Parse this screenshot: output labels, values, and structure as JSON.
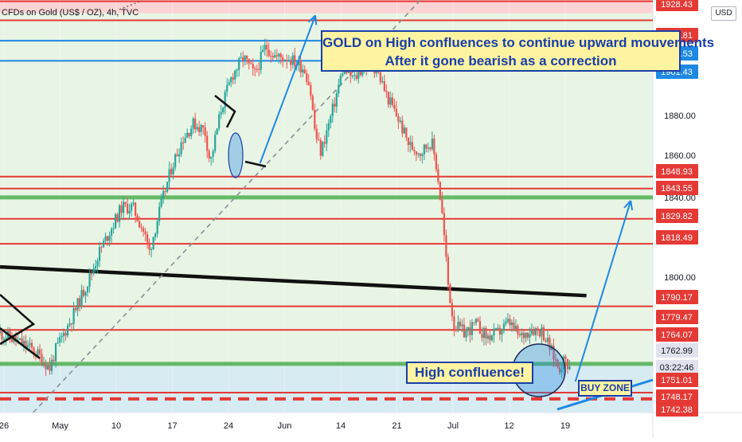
{
  "header": {
    "symbol": "CFDs on Gold (US$ / OZ), 4h, TVC",
    "currency_badge": "USD"
  },
  "annotations": {
    "callout_line1": "GOLD on High confluences to continue upward mouvements",
    "callout_line2": "After it gone bearish as a correction",
    "high_confluence": "High confluence!",
    "buy_zone": "BUY ZONE"
  },
  "colors": {
    "accent_blue": "#1a3fa8",
    "level_red": "#e53935",
    "level_green": "#4caf50",
    "line_blue": "#1e88e5",
    "candle_up": "#26a69a",
    "candle_down": "#ef5350",
    "note_yellow": "#fdf3a1",
    "zone_green": "#e8f4e4",
    "zone_blue": "#d7ebf2",
    "zone_pink": "#fbd3d3"
  },
  "chart_data": {
    "type": "candlestick",
    "title": "CFDs on Gold (US$ / OZ), 4h, TVC",
    "x_axis": {
      "tick_labels": [
        "26",
        "May",
        "10",
        "17",
        "24",
        "Jun",
        "14",
        "21",
        "Jul",
        "12",
        "19"
      ]
    },
    "y_axis": {
      "tick_labels": [
        "1800.00",
        "1840.00",
        "1860.00",
        "1880.00"
      ],
      "ylim": [
        1742,
        1929
      ],
      "unit": "USD"
    },
    "price_labels": [
      {
        "text": "1928.43",
        "style": "red"
      },
      {
        "text": "1919.81",
        "style": "red"
      },
      {
        "text": "1910.53",
        "style": "blue"
      },
      {
        "text": "1901.43",
        "style": "blue"
      },
      {
        "text": "1848.93",
        "style": "red"
      },
      {
        "text": "1843.55",
        "style": "red"
      },
      {
        "text": "1829.82",
        "style": "red"
      },
      {
        "text": "1818.49",
        "style": "red"
      },
      {
        "text": "1790.17",
        "style": "red"
      },
      {
        "text": "1779.47",
        "style": "red"
      },
      {
        "text": "1764.07",
        "style": "red"
      },
      {
        "text": "1762.99",
        "style": "current"
      },
      {
        "text": "03:22:46",
        "style": "current"
      },
      {
        "text": "1751.01",
        "style": "red"
      },
      {
        "text": "1748.17",
        "style": "red"
      },
      {
        "text": "1742.38",
        "style": "red"
      }
    ],
    "horizontal_levels": [
      {
        "price": 1928.43,
        "color": "red",
        "style": "solid"
      },
      {
        "price": 1919.81,
        "color": "red",
        "style": "solid"
      },
      {
        "price": 1910.53,
        "color": "blue",
        "style": "solid"
      },
      {
        "price": 1901.43,
        "color": "blue",
        "style": "solid"
      },
      {
        "price": 1848.93,
        "color": "red",
        "style": "solid"
      },
      {
        "price": 1843.55,
        "color": "red",
        "style": "solid"
      },
      {
        "price": 1839.5,
        "color": "green",
        "style": "thick"
      },
      {
        "price": 1829.82,
        "color": "red",
        "style": "solid"
      },
      {
        "price": 1818.49,
        "color": "red",
        "style": "solid"
      },
      {
        "price": 1790.17,
        "color": "red",
        "style": "solid"
      },
      {
        "price": 1779.47,
        "color": "red",
        "style": "solid"
      },
      {
        "price": 1764.07,
        "color": "green",
        "style": "thick"
      },
      {
        "price": 1751.01,
        "color": "red",
        "style": "solid"
      },
      {
        "price": 1748.17,
        "color": "red",
        "style": "dashed"
      }
    ],
    "zones": [
      {
        "from": 1764,
        "to": 1929,
        "color": "green"
      },
      {
        "from": 1742,
        "to": 1764,
        "color": "blue"
      },
      {
        "from": 1923,
        "to": 1929,
        "color": "pink"
      }
    ],
    "price_path": [
      [
        0,
        1778
      ],
      [
        5,
        1772
      ],
      [
        7,
        1768
      ],
      [
        9,
        1762
      ],
      [
        10,
        1770
      ],
      [
        13,
        1785
      ],
      [
        16,
        1802
      ],
      [
        18,
        1815
      ],
      [
        20,
        1825
      ],
      [
        22,
        1835
      ],
      [
        24,
        1835
      ],
      [
        26,
        1824
      ],
      [
        27,
        1815
      ],
      [
        29,
        1835
      ],
      [
        31,
        1853
      ],
      [
        33,
        1866
      ],
      [
        35,
        1873
      ],
      [
        37,
        1870
      ],
      [
        38,
        1855
      ],
      [
        40,
        1880
      ],
      [
        42,
        1895
      ],
      [
        44,
        1903
      ],
      [
        46,
        1895
      ],
      [
        48,
        1908
      ],
      [
        50,
        1903
      ],
      [
        52,
        1903
      ],
      [
        55,
        1898
      ],
      [
        56,
        1890
      ],
      [
        57,
        1868
      ],
      [
        58,
        1860
      ],
      [
        60,
        1878
      ],
      [
        62,
        1898
      ],
      [
        64,
        1893
      ],
      [
        66,
        1900
      ],
      [
        68,
        1898
      ],
      [
        70,
        1885
      ],
      [
        72,
        1875
      ],
      [
        74,
        1863
      ],
      [
        76,
        1860
      ],
      [
        78,
        1865
      ],
      [
        79,
        1852
      ],
      [
        80,
        1830
      ],
      [
        81,
        1800
      ],
      [
        82,
        1782
      ],
      [
        84,
        1778
      ],
      [
        86,
        1782
      ],
      [
        88,
        1776
      ],
      [
        90,
        1778
      ],
      [
        92,
        1783
      ],
      [
        94,
        1776
      ],
      [
        96,
        1780
      ],
      [
        98,
        1779
      ],
      [
        100,
        1768
      ],
      [
        101,
        1762
      ],
      [
        102,
        1766
      ],
      [
        103,
        1763
      ]
    ],
    "trendlines": [
      {
        "name": "descending support",
        "color": "black",
        "from": [
          0,
          1808
        ],
        "to": [
          106,
          1795
        ]
      },
      {
        "name": "rising dashed trend",
        "color": "gray",
        "from": [
          6,
          1742
        ],
        "to": [
          76,
          1929
        ],
        "style": "dashed"
      }
    ],
    "projection_arrows": [
      {
        "from": [
          47,
          1855
        ],
        "to": [
          57,
          1922
        ]
      },
      {
        "from": [
          104,
          1756
        ],
        "to": [
          114,
          1838
        ]
      }
    ],
    "grid": true
  }
}
